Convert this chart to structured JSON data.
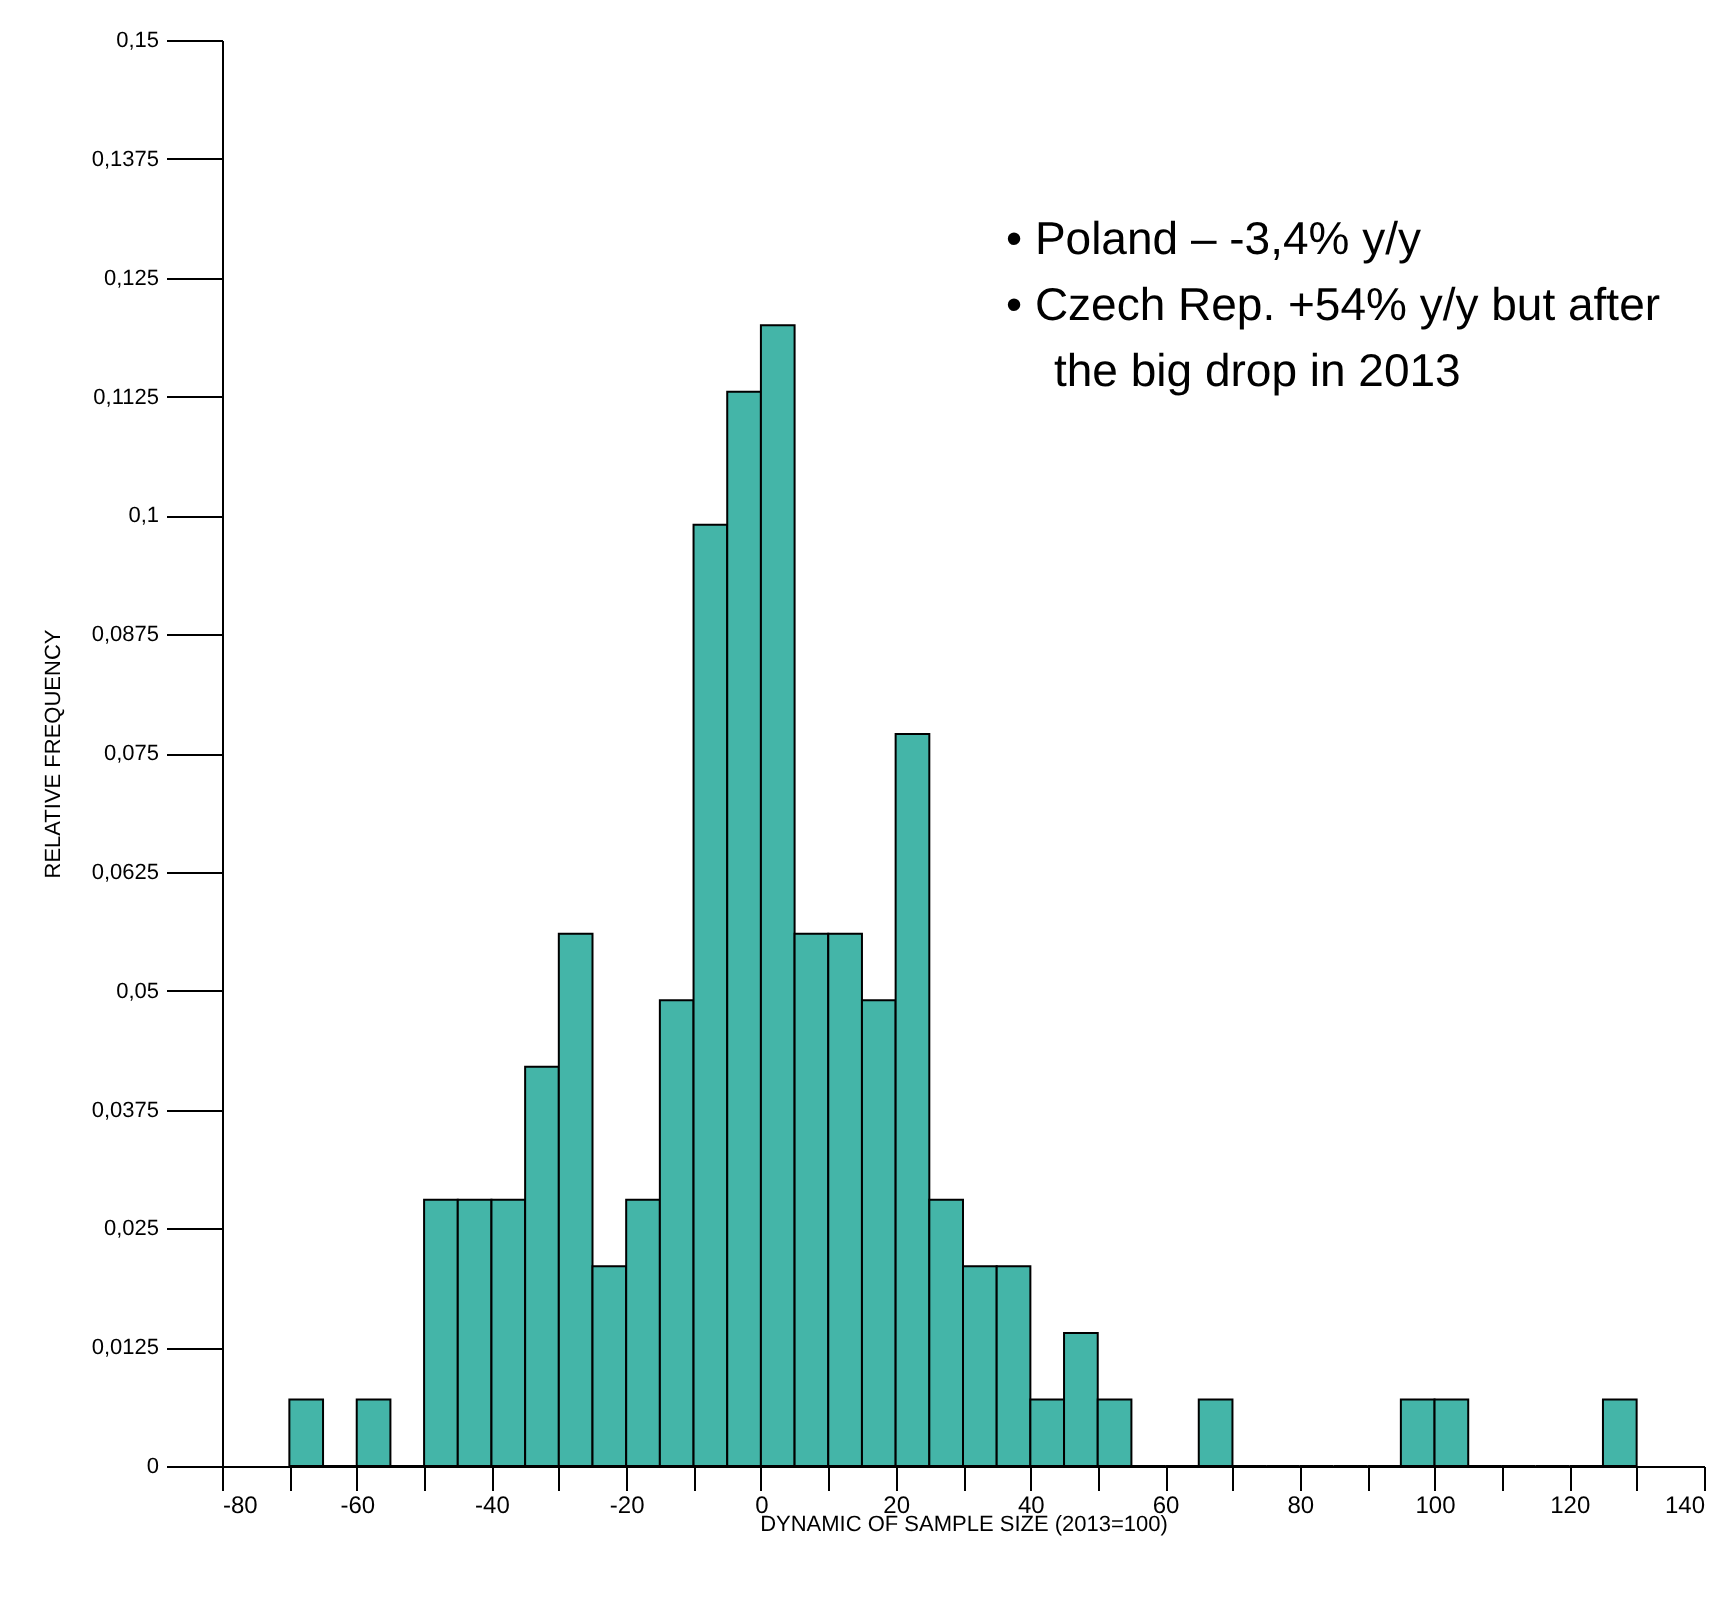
{
  "chart_data": {
    "type": "histogram",
    "xlabel": "DYNAMIC OF SAMPLE SIZE (2013=100)",
    "ylabel": "RELATIVE FREQUENCY",
    "bins": [
      -70,
      -65,
      -60,
      -55,
      -50,
      -45,
      -40,
      -35,
      -30,
      -25,
      -20,
      -15,
      -10,
      -5,
      0,
      5,
      10,
      15,
      20,
      25,
      30,
      35,
      40,
      45,
      50,
      55,
      60,
      65,
      70,
      75,
      80,
      85,
      90,
      95,
      100,
      105,
      110,
      115,
      120,
      125,
      130
    ],
    "values": [
      0.007,
      0,
      0.007,
      0,
      0.028,
      0.028,
      0.028,
      0.042,
      0.056,
      0.021,
      0.028,
      0.049,
      0.099,
      0.113,
      0.12,
      0.056,
      0.056,
      0.049,
      0.077,
      0.028,
      0.021,
      0.021,
      0.007,
      0.014,
      0.007,
      0,
      0,
      0.007,
      0,
      0,
      0,
      0,
      0,
      0.007,
      0.007,
      0,
      0,
      0,
      0,
      0.007
    ],
    "color": "#44b5a8",
    "xlim": [
      -80,
      140
    ],
    "xticks": [
      -80,
      {
        "value": -70,
        "label": null
      },
      -60,
      {
        "value": -50,
        "label": null
      },
      -40,
      {
        "value": -30,
        "label": null
      },
      -20,
      {
        "value": -10,
        "label": null
      },
      0,
      {
        "value": 10,
        "label": null
      },
      20,
      {
        "value": 30,
        "label": null
      },
      40,
      {
        "value": 50,
        "label": null
      },
      60,
      {
        "value": 70,
        "label": null
      },
      80,
      {
        "value": 90,
        "label": null
      },
      100,
      {
        "value": 110,
        "label": null
      },
      120,
      {
        "value": 130,
        "label": null
      },
      140
    ],
    "ylim": [
      0,
      0.15
    ],
    "yticks": [
      0,
      {
        "value": 0.0125,
        "label": "0,0125"
      },
      {
        "value": 0.025,
        "label": "0,025"
      },
      {
        "value": 0.0375,
        "label": "0,0375"
      },
      {
        "value": 0.05,
        "label": "0,05"
      },
      {
        "value": 0.0625,
        "label": "0,0625"
      },
      {
        "value": 0.075,
        "label": "0,075"
      },
      {
        "value": 0.0875,
        "label": "0,0875"
      },
      {
        "value": 0.1,
        "label": "0,1"
      },
      {
        "value": 0.1125,
        "label": "0,1125"
      },
      {
        "value": 0.125,
        "label": "0,125"
      },
      {
        "value": 0.1375,
        "label": "0,1375"
      },
      {
        "value": 0.15,
        "label": "0,15"
      }
    ],
    "grid": false,
    "annotations": [
      "• Poland – -3,4% y/y",
      "• Czech Rep. +54% y/y but after the big drop in 2013"
    ]
  }
}
